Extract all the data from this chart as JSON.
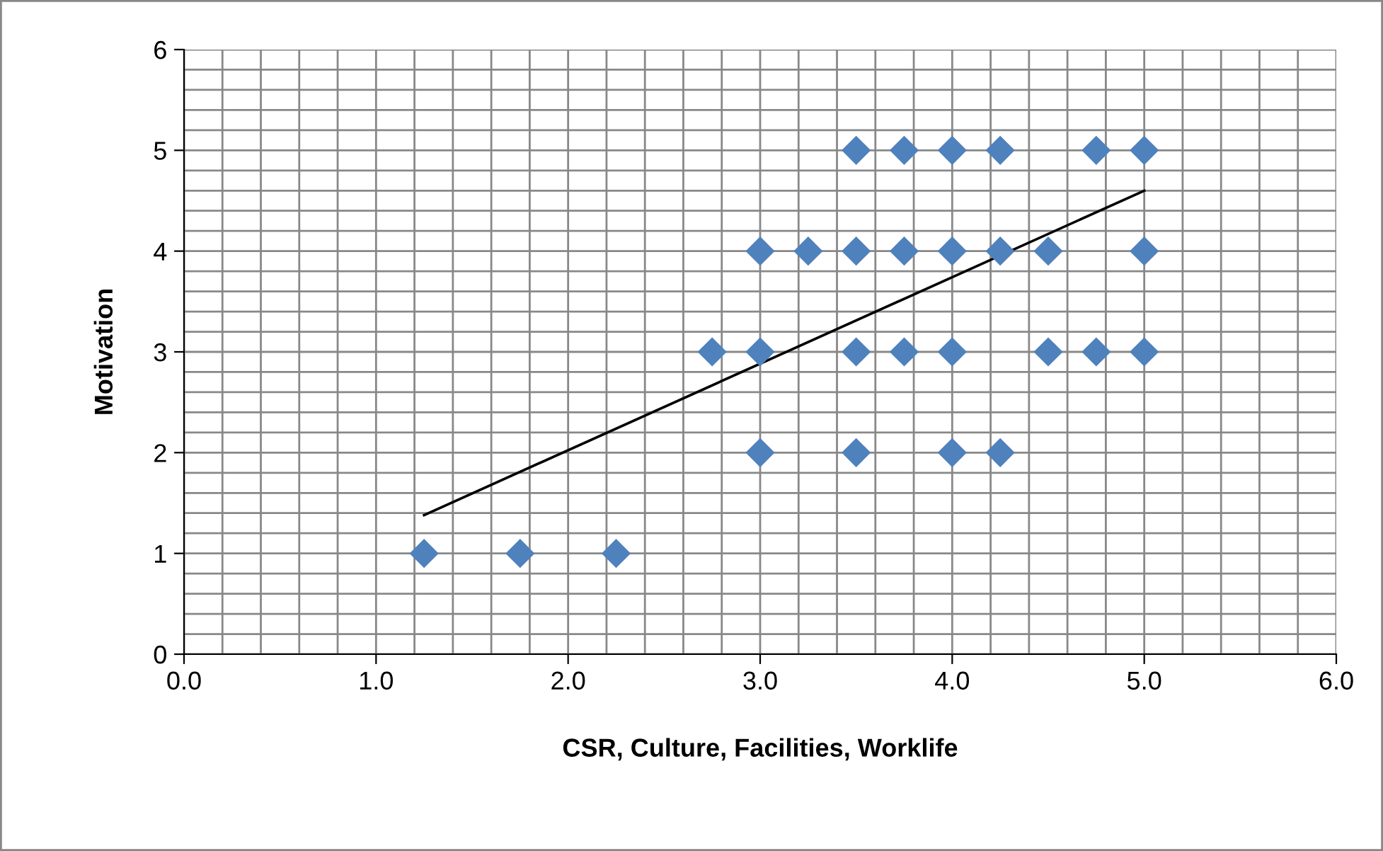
{
  "chart_data": {
    "type": "scatter",
    "xlabel": "CSR, Culture, Facilities, Worklife",
    "ylabel": "Motivation",
    "xlim": [
      0,
      6
    ],
    "ylim": [
      0,
      6
    ],
    "xticks": [
      {
        "value": 0,
        "label": "0.0"
      },
      {
        "value": 1,
        "label": "1.0"
      },
      {
        "value": 2,
        "label": "2.0"
      },
      {
        "value": 3,
        "label": "3.0"
      },
      {
        "value": 4,
        "label": "4.0"
      },
      {
        "value": 5,
        "label": "5.0"
      },
      {
        "value": 6,
        "label": "6.0"
      }
    ],
    "yticks": [
      0,
      1,
      2,
      3,
      4,
      5,
      6
    ],
    "grid": true,
    "series": [
      {
        "marker": "diamond",
        "color": "#4f81bd",
        "x": [
          3.5,
          3.75,
          4.0,
          4.25,
          4.75,
          5.0,
          3.0,
          3.25,
          3.5,
          3.75,
          4.0,
          4.25,
          4.5,
          5.0,
          2.75,
          3.0,
          3.5,
          3.75,
          4.0,
          4.5,
          4.75,
          5.0,
          3.0,
          3.5,
          4.0,
          4.25,
          1.25,
          1.75,
          2.25
        ],
        "values": [
          5,
          5,
          5,
          5,
          5,
          5,
          4,
          4,
          4,
          4,
          4,
          4,
          4,
          4,
          3,
          3,
          3,
          3,
          3,
          3,
          3,
          3,
          2,
          2,
          2,
          2,
          1,
          1,
          1
        ]
      },
      {
        "type": "line",
        "marker": "none",
        "color": "#000000",
        "x": [
          1.25,
          5.0
        ],
        "values": [
          1.38,
          4.6
        ]
      }
    ]
  }
}
